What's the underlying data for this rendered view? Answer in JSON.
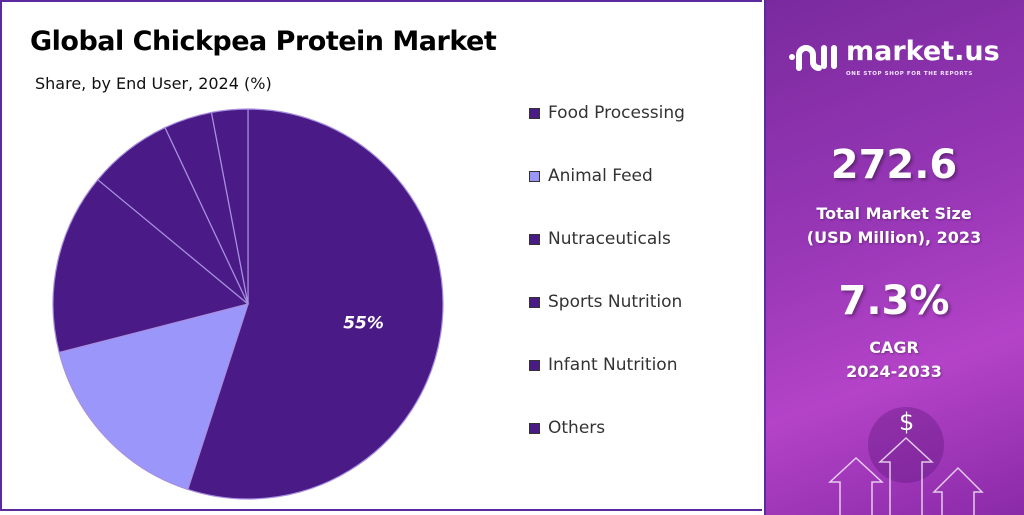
{
  "chart_data": {
    "type": "pie",
    "title": "Global Chickpea Protein Market",
    "subtitle": "Share, by End User, 2024 (%)",
    "categories": [
      "Food Processing",
      "Animal Feed",
      "Nutraceuticals",
      "Sports Nutrition",
      "Infant Nutrition",
      "Others"
    ],
    "values": [
      55,
      16,
      15,
      7,
      4,
      3
    ],
    "colors": [
      "#4a1a86",
      "#9a96fa",
      "#4a1a86",
      "#4a1a86",
      "#4a1a86",
      "#4a1a86"
    ],
    "data_labels": [
      {
        "category": "Food Processing",
        "text": "55%"
      }
    ],
    "legend_position": "right",
    "start": "top, clockwise"
  },
  "panel": {
    "brand": "market.us",
    "tagline": "ONE STOP SHOP FOR THE REPORTS",
    "market_size": "272.6",
    "market_size_label1": "Total Market Size",
    "market_size_label2": "(USD Million), 2023",
    "cagr": "7.3%",
    "cagr_label1": "CAGR",
    "cagr_label2": "2024-2033",
    "dollar": "$",
    "background_color": "#9a38b8"
  }
}
